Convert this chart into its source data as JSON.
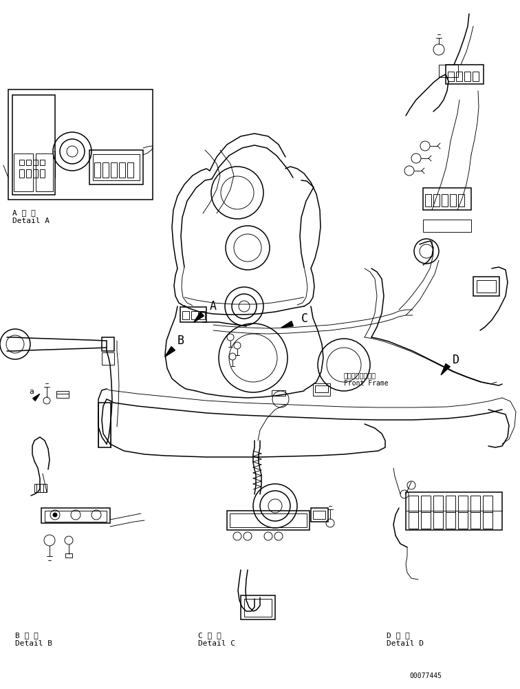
{
  "background_color": "#ffffff",
  "line_color": "#000000",
  "figsize": [
    7.56,
    10.01
  ],
  "dpi": 100,
  "part_number": "00077445",
  "labels": {
    "detail_a_jp": "A 詳 細",
    "detail_a_en": "Detail A",
    "detail_b_jp": "B 詳 細",
    "detail_b_en": "Detail B",
    "detail_c_jp": "C 詳 細",
    "detail_c_en": "Detail C",
    "detail_d_jp": "D 詳 細",
    "detail_d_en": "Detail D",
    "front_frame_jp": "フロントフレーム",
    "front_frame_en": "Front Frame",
    "label_a": "A",
    "label_b": "B",
    "label_c": "C",
    "label_d": "D",
    "label_a_small": "a"
  },
  "font_sizes": {
    "label_large": 12,
    "label_medium": 8,
    "label_small": 7,
    "part_number": 7
  }
}
